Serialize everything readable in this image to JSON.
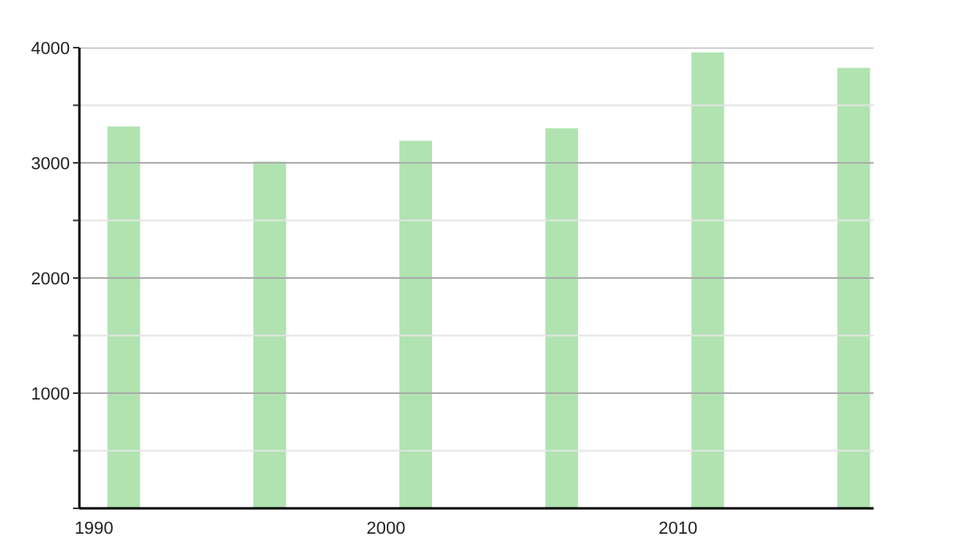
{
  "chart_data": {
    "type": "bar",
    "x": [
      1991,
      1996,
      2001,
      2006,
      2011,
      2016
    ],
    "values": [
      3315,
      3011,
      3191,
      3300,
      3958,
      3824
    ],
    "color": "#b0e3b0",
    "xlim": [
      1989.5,
      2016.7
    ],
    "xticks": [
      1990,
      2000,
      2010
    ],
    "ylim": [
      0,
      4000
    ],
    "yticks": [
      {
        "value": 0,
        "label": null
      },
      {
        "value": 500,
        "label": null
      },
      1000,
      {
        "value": 1500,
        "label": null
      },
      2000,
      {
        "value": 2500,
        "label": null
      },
      3000,
      {
        "value": 3500,
        "label": null
      },
      4000
    ],
    "grid": "y",
    "legend": false
  }
}
